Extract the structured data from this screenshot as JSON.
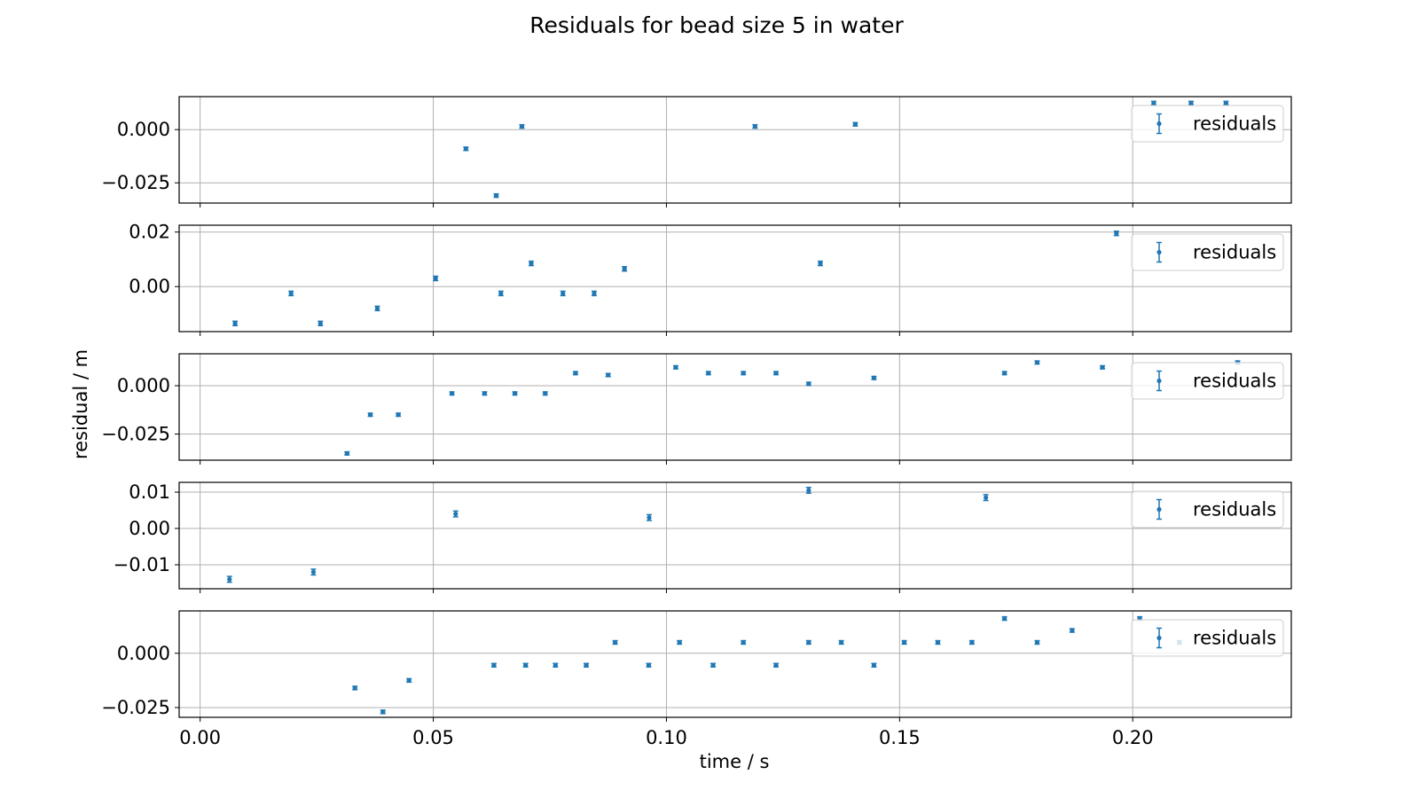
{
  "title": "Residuals for bead  size 5 in water",
  "xlabel": "time / s",
  "ylabel": "residual / m",
  "colors": {
    "marker": "#1f77b4",
    "grid": "#b0b0b0",
    "axes": "#000000",
    "legend_border": "#cccccc"
  },
  "chart_data": [
    {
      "type": "scatter",
      "xlim": [
        -0.0045,
        0.234
      ],
      "ylim": [
        -0.0345,
        0.0155
      ],
      "yticks": [
        {
          "value": 0.0,
          "label": "0.000"
        },
        {
          "value": -0.025,
          "label": "−0.025"
        }
      ],
      "grid": true,
      "legend": {
        "label": "residuals",
        "placement": "top-right"
      },
      "series": [
        {
          "name": "residuals",
          "x": [
            0.057,
            0.0635,
            0.069,
            0.119,
            0.1405,
            0.2045,
            0.2125,
            0.22
          ],
          "y": [
            -0.009,
            -0.031,
            0.0015,
            0.0015,
            0.0025,
            0.0125,
            0.0125,
            0.0125
          ],
          "yerr": 0.0008
        }
      ]
    },
    {
      "type": "scatter",
      "xlim": [
        -0.0045,
        0.234
      ],
      "ylim": [
        -0.0165,
        0.0225
      ],
      "yticks": [
        {
          "value": 0.02,
          "label": "0.02"
        },
        {
          "value": 0.0,
          "label": "0.00"
        }
      ],
      "grid": true,
      "legend": {
        "label": "residuals",
        "placement": "top-right"
      },
      "series": [
        {
          "name": "residuals",
          "x": [
            0.0075,
            0.0195,
            0.0258,
            0.038,
            0.0505,
            0.0645,
            0.071,
            0.0778,
            0.0845,
            0.091,
            0.133,
            0.1965
          ],
          "y": [
            -0.0135,
            -0.0025,
            -0.0135,
            -0.008,
            0.003,
            -0.0025,
            0.0085,
            -0.0025,
            -0.0025,
            0.0065,
            0.0085,
            0.0195
          ],
          "yerr": 0.0008
        }
      ]
    },
    {
      "type": "scatter",
      "xlim": [
        -0.0045,
        0.234
      ],
      "ylim": [
        -0.0385,
        0.0165
      ],
      "yticks": [
        {
          "value": 0.0,
          "label": "0.000"
        },
        {
          "value": -0.025,
          "label": "−0.025"
        }
      ],
      "grid": true,
      "legend": {
        "label": "residuals",
        "placement": "top-right"
      },
      "series": [
        {
          "name": "residuals",
          "x": [
            0.0315,
            0.0365,
            0.0425,
            0.054,
            0.061,
            0.0675,
            0.074,
            0.0805,
            0.0875,
            0.102,
            0.109,
            0.1165,
            0.1235,
            0.1305,
            0.1445,
            0.1725,
            0.1795,
            0.1935,
            0.2225
          ],
          "y": [
            -0.035,
            -0.015,
            -0.015,
            -0.004,
            -0.004,
            -0.004,
            -0.004,
            0.0065,
            0.0055,
            0.0095,
            0.0065,
            0.0065,
            0.0065,
            0.001,
            0.004,
            0.0065,
            0.012,
            0.0095,
            0.012
          ],
          "yerr": 0.0008
        }
      ]
    },
    {
      "type": "scatter",
      "xlim": [
        -0.0045,
        0.234
      ],
      "ylim": [
        -0.0166,
        0.0127
      ],
      "yticks": [
        {
          "value": 0.01,
          "label": "0.01"
        },
        {
          "value": 0.0,
          "label": "0.00"
        },
        {
          "value": -0.01,
          "label": "−0.01"
        }
      ],
      "grid": true,
      "legend": {
        "label": "residuals",
        "placement": "top-right"
      },
      "series": [
        {
          "name": "residuals",
          "x": [
            0.0063,
            0.0243,
            0.0548,
            0.0963,
            0.1305,
            0.1685
          ],
          "y": [
            -0.014,
            -0.012,
            0.004,
            0.003,
            0.0105,
            0.0085
          ],
          "yerr": 0.0008
        }
      ]
    },
    {
      "type": "scatter",
      "xlim": [
        -0.0045,
        0.234
      ],
      "ylim": [
        -0.0295,
        0.0195
      ],
      "yticks": [
        {
          "value": 0.0,
          "label": "0.000"
        },
        {
          "value": -0.025,
          "label": "−0.025"
        }
      ],
      "xticks": [
        {
          "value": 0.0,
          "label": "0.00"
        },
        {
          "value": 0.05,
          "label": "0.05"
        },
        {
          "value": 0.1,
          "label": "0.10"
        },
        {
          "value": 0.15,
          "label": "0.15"
        },
        {
          "value": 0.2,
          "label": "0.20"
        }
      ],
      "grid": true,
      "legend": {
        "label": "residuals",
        "placement": "top-right"
      },
      "series": [
        {
          "name": "residuals",
          "x": [
            0.0332,
            0.0392,
            0.0448,
            0.063,
            0.0698,
            0.0762,
            0.0828,
            0.089,
            0.0962,
            0.1028,
            0.11,
            0.1165,
            0.1235,
            0.1305,
            0.1375,
            0.1445,
            0.151,
            0.1582,
            0.1655,
            0.1725,
            0.1795,
            0.187,
            0.2015,
            0.21
          ],
          "y": [
            -0.016,
            -0.027,
            -0.0125,
            -0.0055,
            -0.0055,
            -0.0055,
            -0.0055,
            0.005,
            -0.0055,
            0.005,
            -0.0055,
            0.005,
            -0.0055,
            0.005,
            0.005,
            -0.0055,
            0.005,
            0.005,
            0.005,
            0.016,
            0.005,
            0.0105,
            0.016,
            0.005
          ],
          "yerr": 0.0008
        }
      ]
    }
  ]
}
